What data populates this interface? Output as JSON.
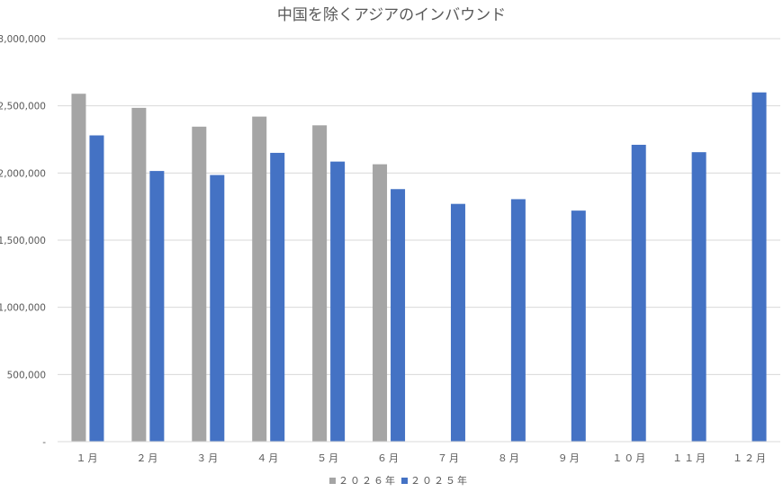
{
  "chart_data": {
    "type": "bar",
    "title": "中国を除くアジアのインバウンド",
    "xlabel": "",
    "ylabel": "",
    "categories": [
      "１月",
      "２月",
      "３月",
      "４月",
      "５月",
      "６月",
      "７月",
      "８月",
      "９月",
      "１０月",
      "１１月",
      "１２月"
    ],
    "series": [
      {
        "name": "２０２６年",
        "color": "#a5a5a5",
        "values": [
          2590000,
          2485000,
          2345000,
          2420000,
          2355000,
          2065000,
          null,
          null,
          null,
          null,
          null,
          null
        ]
      },
      {
        "name": "２０２５年",
        "color": "#4472c4",
        "values": [
          2280000,
          2015000,
          1985000,
          2150000,
          2085000,
          1880000,
          1770000,
          1805000,
          1720000,
          2210000,
          2155000,
          2600000
        ]
      }
    ],
    "ylim": [
      0,
      3000000
    ],
    "yticks": [
      0,
      500000,
      1000000,
      1500000,
      2000000,
      2500000,
      3000000
    ],
    "ytick_labels": [
      "-",
      "500,000",
      "1,000,000",
      "1,500,000",
      "2,000,000",
      "2,500,000",
      "3,000,000"
    ],
    "grid": true,
    "legend_position": "bottom"
  }
}
